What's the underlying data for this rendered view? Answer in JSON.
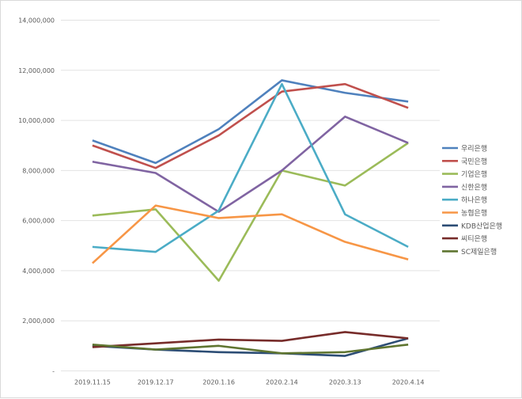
{
  "chart_data": {
    "type": "line",
    "title": "",
    "xlabel": "",
    "ylabel": "",
    "categories": [
      "2019.11.15",
      "2019.12.17",
      "2020.1.16",
      "2020.2.14",
      "2020.3.13",
      "2020.4.14"
    ],
    "ylim": [
      0,
      14000000
    ],
    "yticks": [
      0,
      2000000,
      4000000,
      6000000,
      8000000,
      10000000,
      12000000,
      14000000
    ],
    "ytick_labels": [
      "-",
      "2,000,000",
      "4,000,000",
      "6,000,000",
      "8,000,000",
      "10,000,000",
      "12,000,000",
      "14,000,000"
    ],
    "grid": true,
    "legend_position": "right",
    "series": [
      {
        "name": "우리은행",
        "color": "#4f81bd",
        "values": [
          9200000,
          8300000,
          9650000,
          11600000,
          11100000,
          10750000
        ]
      },
      {
        "name": "국민은행",
        "color": "#c0504d",
        "values": [
          9000000,
          8100000,
          9400000,
          11150000,
          11450000,
          10500000
        ]
      },
      {
        "name": "기업은행",
        "color": "#9bbb59",
        "values": [
          6200000,
          6450000,
          3600000,
          8000000,
          7400000,
          9100000
        ]
      },
      {
        "name": "신한은행",
        "color": "#8064a2",
        "values": [
          8350000,
          7900000,
          6350000,
          8000000,
          10150000,
          9100000
        ]
      },
      {
        "name": "하나은행",
        "color": "#4bacc6",
        "values": [
          4950000,
          4750000,
          6400000,
          11450000,
          6250000,
          4950000
        ]
      },
      {
        "name": "농협은행",
        "color": "#f79646",
        "values": [
          4300000,
          6600000,
          6100000,
          6250000,
          5150000,
          4450000
        ]
      },
      {
        "name": "KDB산업은행",
        "color": "#2c4d75",
        "values": [
          1000000,
          850000,
          750000,
          700000,
          600000,
          1300000
        ]
      },
      {
        "name": "씨티은행",
        "color": "#772c2a",
        "values": [
          950000,
          1100000,
          1250000,
          1200000,
          1550000,
          1300000
        ]
      },
      {
        "name": "SC제일은행",
        "color": "#5f7530",
        "values": [
          1050000,
          850000,
          1000000,
          700000,
          750000,
          1050000
        ]
      }
    ]
  }
}
